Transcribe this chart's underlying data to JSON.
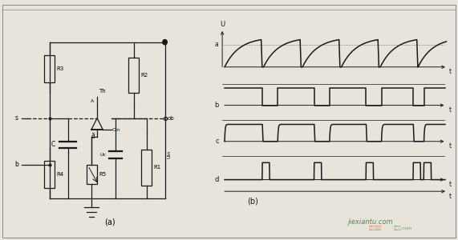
{
  "bg_color": "#e8e4dc",
  "fig_width": 5.71,
  "fig_height": 3.0,
  "dpi": 100,
  "label_a": "(a)",
  "label_b": "(b)",
  "line_color": "#1a1a1a",
  "watermark_text": "jiexiantu.com",
  "watermark_color": "#2e7d32",
  "inner_bg": "#f5f2ec",
  "border_color": "#888888",
  "waveform_period": 1.6,
  "num_cycles": 5
}
